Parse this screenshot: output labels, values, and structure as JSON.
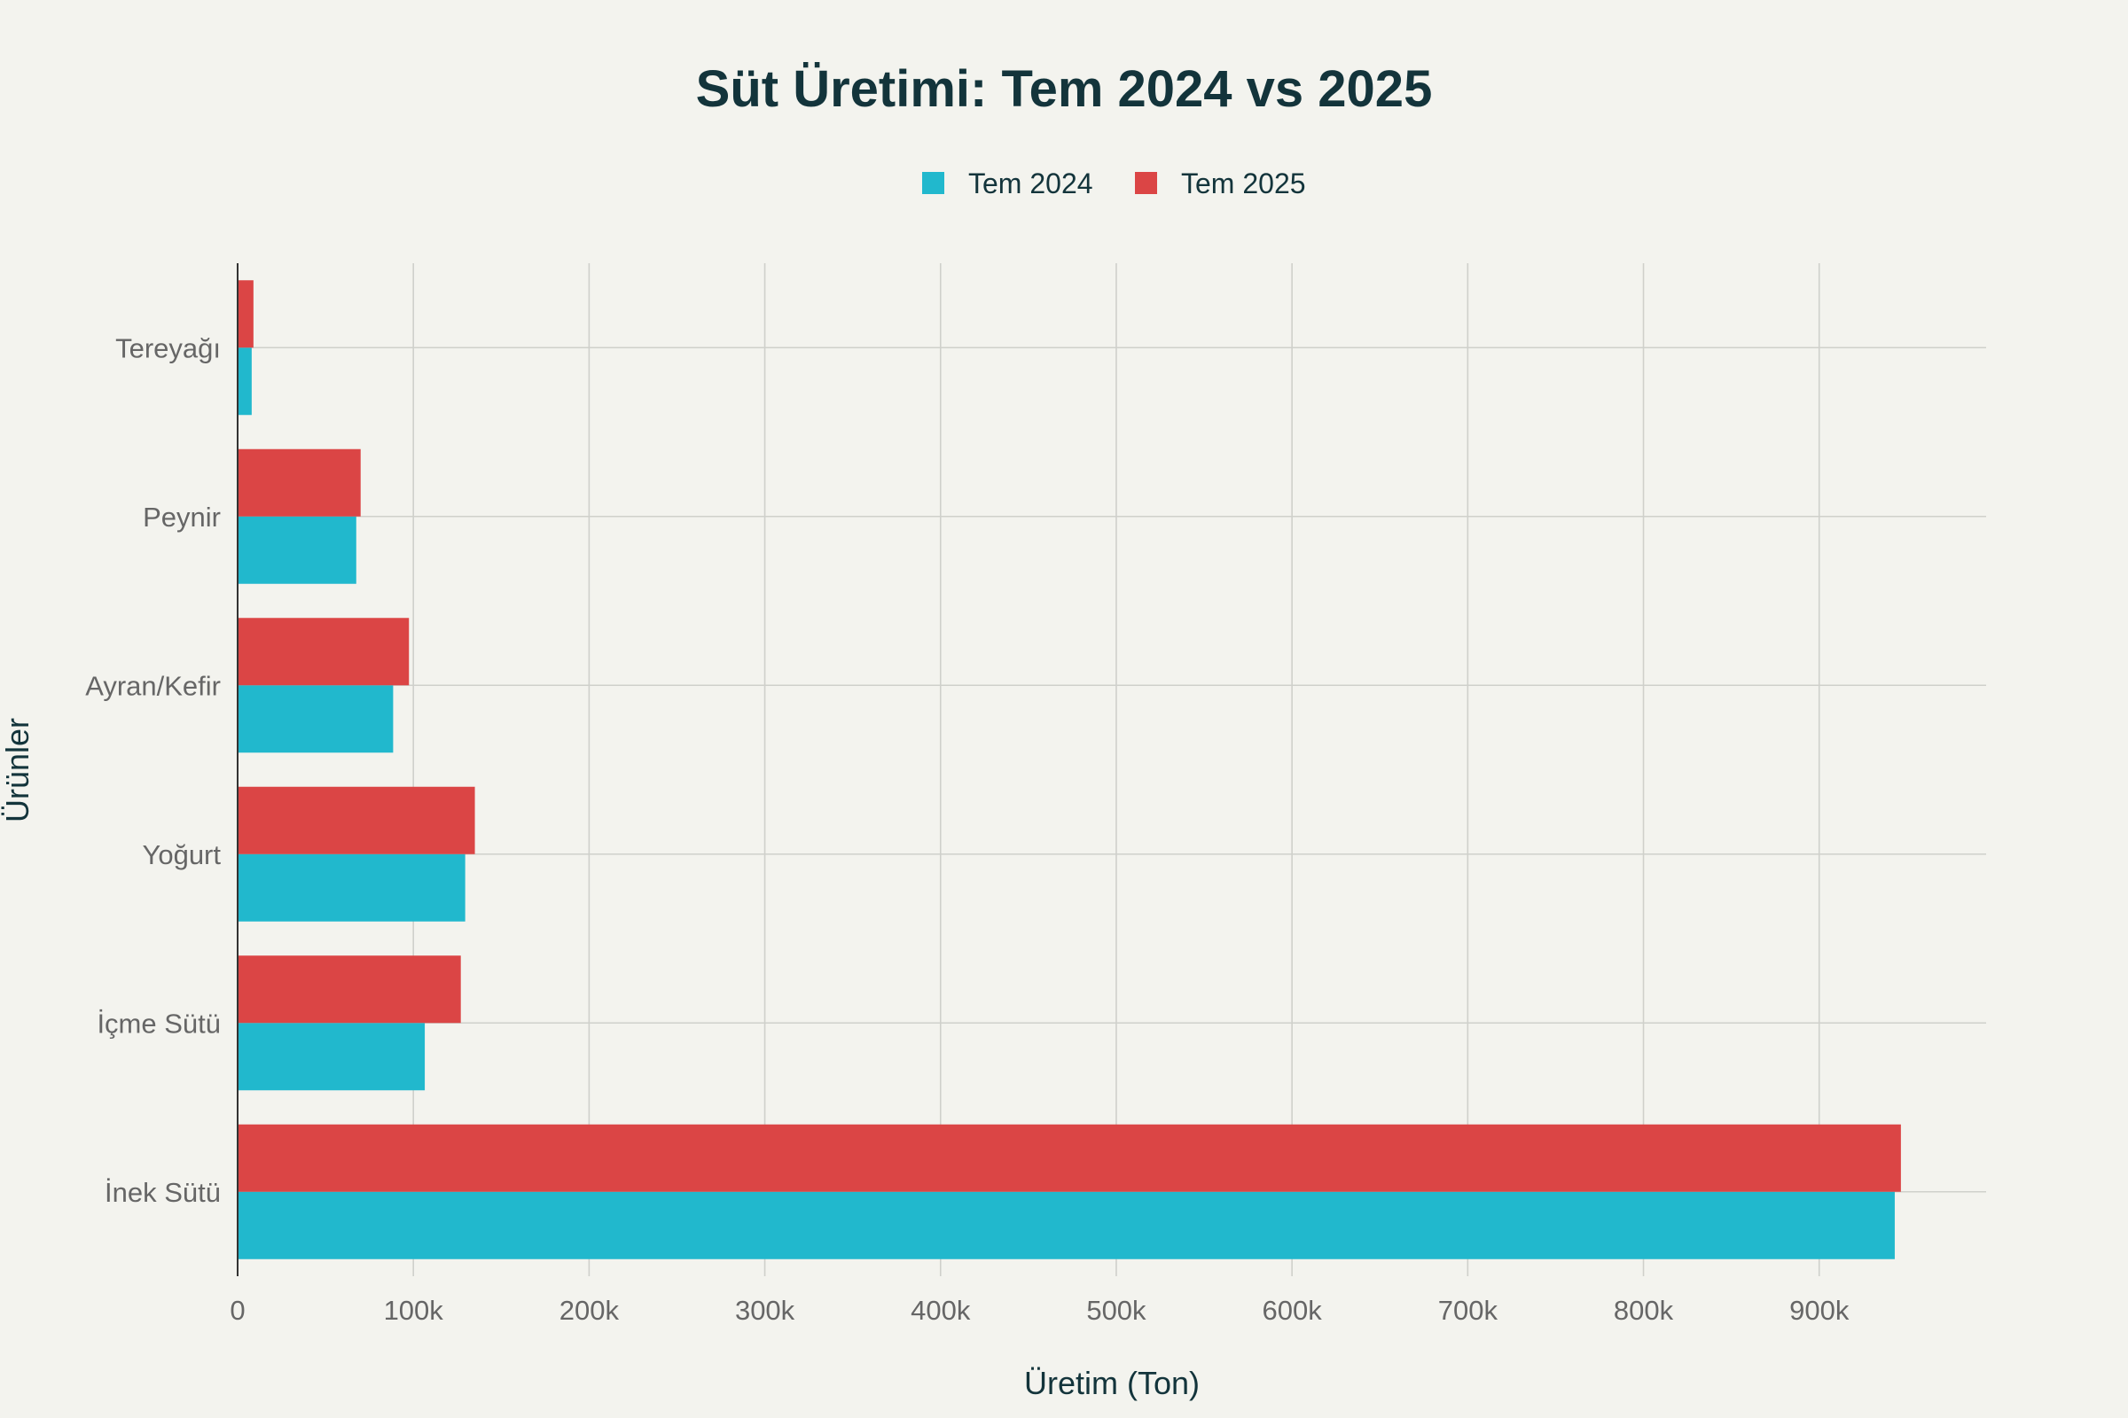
{
  "chart_data": {
    "type": "bar",
    "orientation": "horizontal",
    "title": "Süt Üretimi: Tem 2024 vs 2025",
    "xlabel": "Üretim (Ton)",
    "ylabel": "Ürünler",
    "categories": [
      "İnek Sütü",
      "İçme Sütü",
      "Yoğurt",
      "Ayran/Kefir",
      "Peynir",
      "Tereyağı"
    ],
    "series": [
      {
        "name": "Tem 2024",
        "color": "#21b8cd",
        "values": [
          943000,
          106500,
          129500,
          88500,
          67500,
          8000
        ]
      },
      {
        "name": "Tem 2025",
        "color": "#db4545",
        "values": [
          946500,
          127000,
          135000,
          97500,
          70000,
          9000
        ]
      }
    ],
    "xlim": [
      0,
      995000
    ],
    "xticks": [
      0,
      100000,
      200000,
      300000,
      400000,
      500000,
      600000,
      700000,
      800000,
      900000
    ],
    "xtick_labels": [
      "0",
      "100k",
      "200k",
      "300k",
      "400k",
      "500k",
      "600k",
      "700k",
      "800k",
      "900k"
    ],
    "grid": true,
    "legend_position": "top-center"
  }
}
